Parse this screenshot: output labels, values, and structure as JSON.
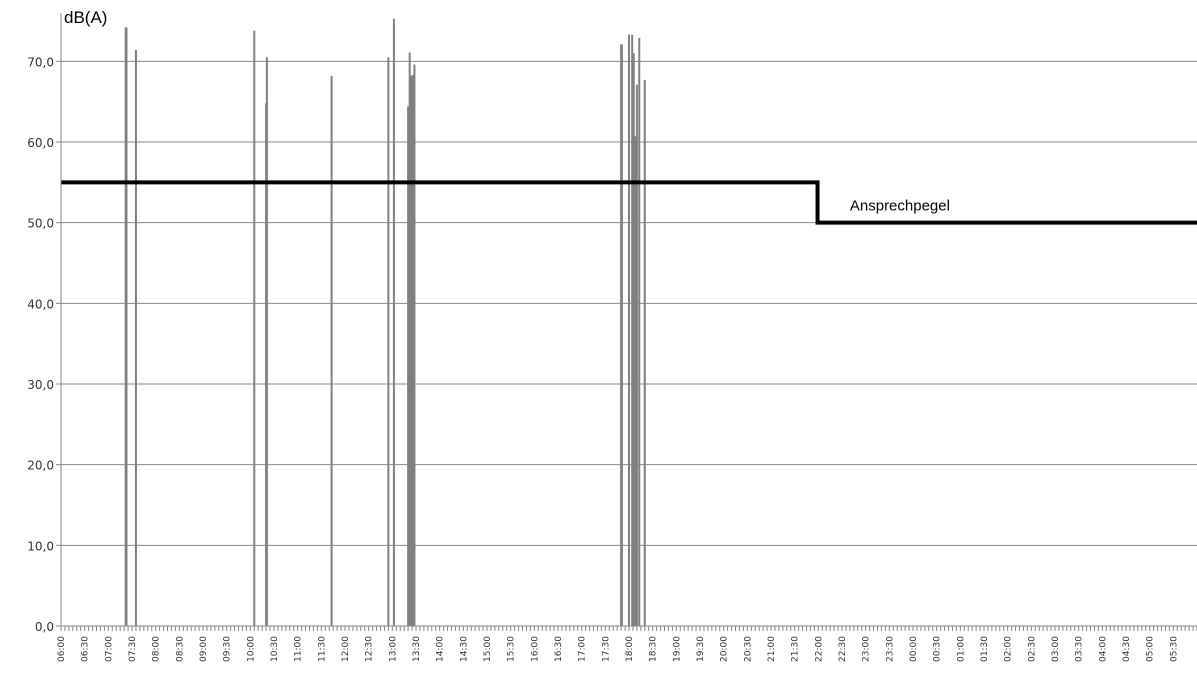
{
  "chart_data": {
    "type": "bar",
    "ylabel": "dB(A)",
    "ylim": [
      0,
      75
    ],
    "yticks": [
      "0,0",
      "10,0",
      "20,0",
      "30,0",
      "40,0",
      "50,0",
      "60,0",
      "70,0"
    ],
    "ytick_values": [
      0,
      10,
      20,
      30,
      40,
      50,
      60,
      70
    ],
    "grid": "horizontal",
    "x_start": "06:00",
    "x_end": "06:00",
    "x_tick_labels": [
      "06:00",
      "06:30",
      "07:00",
      "07:30",
      "08:00",
      "08:30",
      "09:00",
      "09:30",
      "10:00",
      "10:30",
      "11:00",
      "11:30",
      "12:00",
      "12:30",
      "13:00",
      "13:30",
      "14:00",
      "14:30",
      "15:00",
      "15:30",
      "16:00",
      "16:30",
      "17:00",
      "17:30",
      "18:00",
      "18:30",
      "19:00",
      "19:30",
      "20:00",
      "20:30",
      "21:00",
      "21:30",
      "22:00",
      "22:30",
      "23:00",
      "23:30",
      "00:00",
      "00:30",
      "01:00",
      "01:30",
      "02:00",
      "02:30",
      "03:00",
      "03:30",
      "04:00",
      "04:30",
      "05:00",
      "05:30"
    ],
    "series": [
      {
        "type": "bar",
        "color": "#808080",
        "points": [
          {
            "t": "07:22",
            "y": 74.2
          },
          {
            "t": "07:23",
            "y": 74.2
          },
          {
            "t": "07:35",
            "y": 71.4
          },
          {
            "t": "10:05",
            "y": 73.8
          },
          {
            "t": "10:20",
            "y": 64.8
          },
          {
            "t": "10:21",
            "y": 70.5
          },
          {
            "t": "11:43",
            "y": 68.2
          },
          {
            "t": "12:55",
            "y": 70.5
          },
          {
            "t": "13:02",
            "y": 75.3
          },
          {
            "t": "13:20",
            "y": 64.4
          },
          {
            "t": "13:22",
            "y": 71.1
          },
          {
            "t": "13:24",
            "y": 68.2
          },
          {
            "t": "13:26",
            "y": 68.3
          },
          {
            "t": "13:28",
            "y": 69.6
          },
          {
            "t": "17:50",
            "y": 72.1
          },
          {
            "t": "17:51",
            "y": 72.1
          },
          {
            "t": "18:00",
            "y": 73.3
          },
          {
            "t": "18:04",
            "y": 73.3
          },
          {
            "t": "18:06",
            "y": 71.0
          },
          {
            "t": "18:08",
            "y": 60.7
          },
          {
            "t": "18:10",
            "y": 67.1
          },
          {
            "t": "18:13",
            "y": 72.9
          },
          {
            "t": "18:20",
            "y": 67.7
          }
        ]
      },
      {
        "type": "line",
        "name": "Ansprechpegel",
        "color": "#000000",
        "points": [
          {
            "t": "06:00",
            "y": 55
          },
          {
            "t": "21:59",
            "y": 55
          },
          {
            "t": "22:00",
            "y": 50
          },
          {
            "t": "06:00",
            "y": 50
          }
        ]
      }
    ],
    "annotations": [
      {
        "text": "Ansprechpegel",
        "t": "22:40",
        "y": 51.5
      }
    ]
  }
}
